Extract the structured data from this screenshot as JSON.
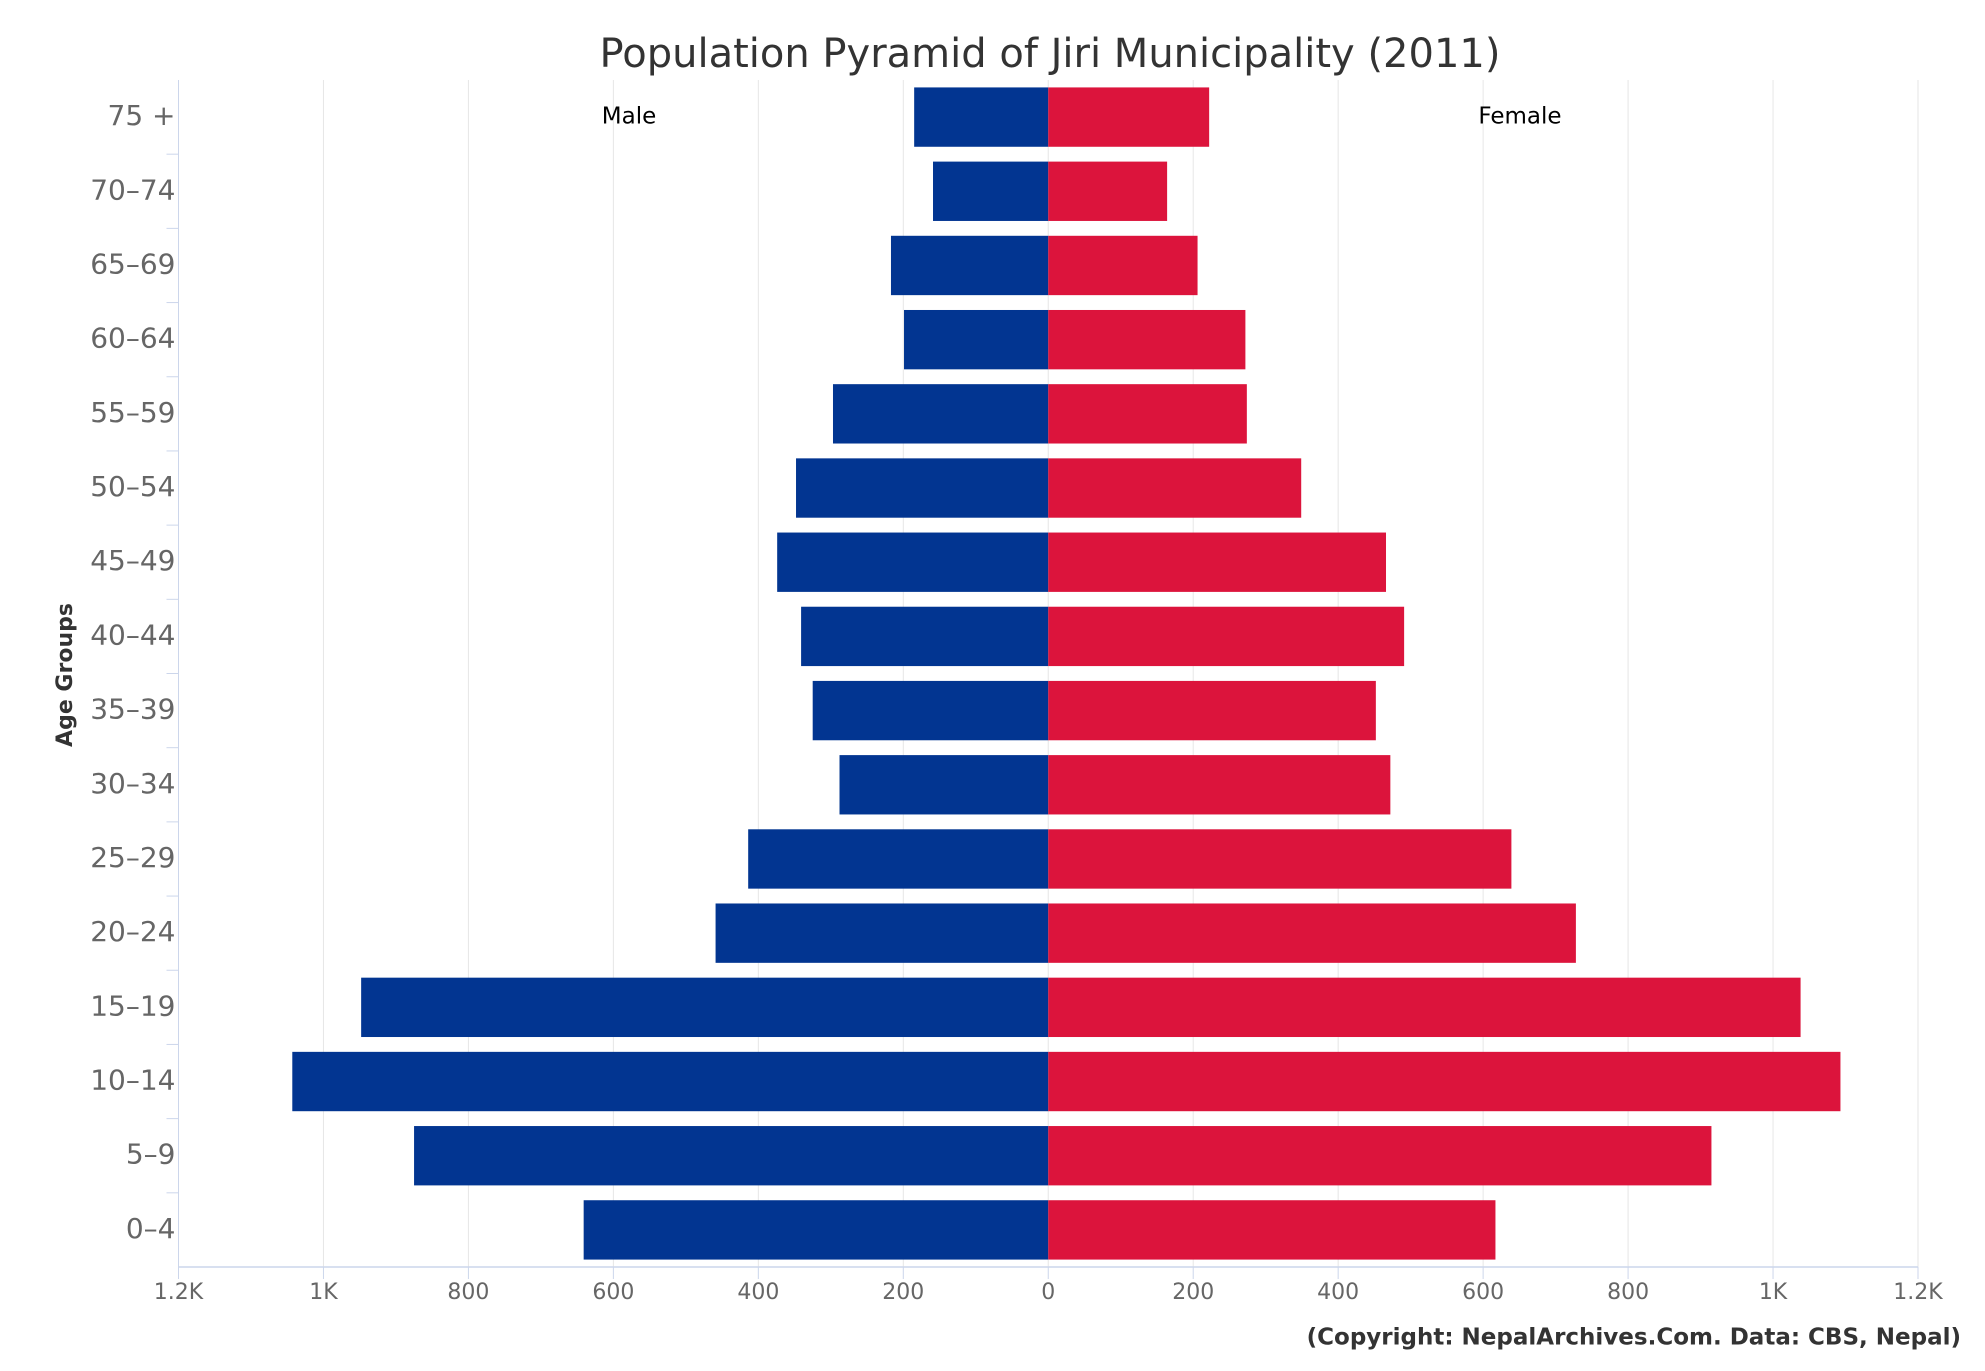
{
  "chart_data": {
    "type": "pyramid",
    "title": "Population Pyramid of Jiri Municipality (2011)",
    "y_axis_label": "Age Groups",
    "credit": "(Copyright: NepalArchives.Com. Data: CBS, Nepal)",
    "categories": [
      "75 +",
      "70–74",
      "65–69",
      "60–64",
      "55–59",
      "50–54",
      "45–49",
      "40–44",
      "35–39",
      "30–34",
      "25–29",
      "20–24",
      "15–19",
      "10–14",
      "5–9",
      "0–4"
    ],
    "series": [
      {
        "name": "Male",
        "color": "#023591",
        "values": [
          -185,
          -159,
          -217,
          -199,
          -297,
          -348,
          -374,
          -341,
          -325,
          -288,
          -414,
          -459,
          -948,
          -1043,
          -875,
          -641
        ]
      },
      {
        "name": "Female",
        "color": "#dc143c",
        "values": [
          222,
          164,
          206,
          272,
          274,
          349,
          466,
          491,
          452,
          472,
          639,
          728,
          1038,
          1093,
          915,
          617
        ]
      }
    ],
    "xlim": [
      -1200,
      1200
    ],
    "xticks": [
      {
        "value": -1200,
        "label": "1.2K"
      },
      {
        "value": -1000,
        "label": "1K"
      },
      {
        "value": -800,
        "label": "800"
      },
      {
        "value": -600,
        "label": "600"
      },
      {
        "value": -400,
        "label": "400"
      },
      {
        "value": -200,
        "label": "200"
      },
      0,
      200,
      400,
      600,
      800,
      {
        "value": 1000,
        "label": "1K"
      },
      {
        "value": 1200,
        "label": "1.2K"
      }
    ],
    "grid": true
  }
}
